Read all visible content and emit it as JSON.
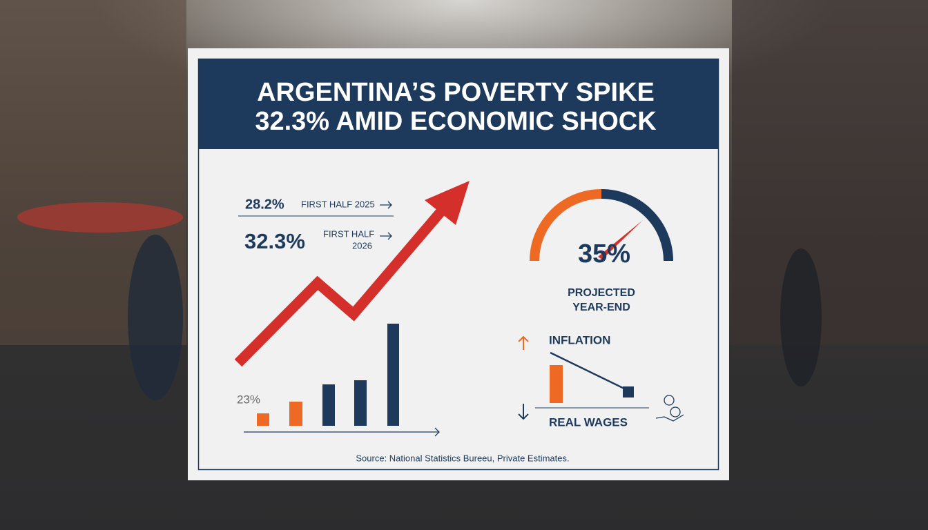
{
  "header": {
    "title_lines": [
      "ARGENTINA’S POVERTY SPIKE",
      "32.3% AMID ECONOMIC SHOCK"
    ]
  },
  "left_panel": {
    "stats": [
      {
        "value": "28.2%",
        "label_lines": [
          "FIRST HALF 2025"
        ]
      },
      {
        "value": "32.3%",
        "label_lines": [
          "FIRST HALF",
          "2026"
        ]
      }
    ],
    "baseline_label": "23%"
  },
  "right_panel": {
    "gauge_value": "35%",
    "gauge_caption_lines": [
      "PROJECTED",
      "YEAR-END"
    ],
    "inflation_label": "INFLATION",
    "wages_label": "REAL WAGES"
  },
  "footer": {
    "source": "Source: National Statistics Bureeu, Private Estimates."
  }
}
